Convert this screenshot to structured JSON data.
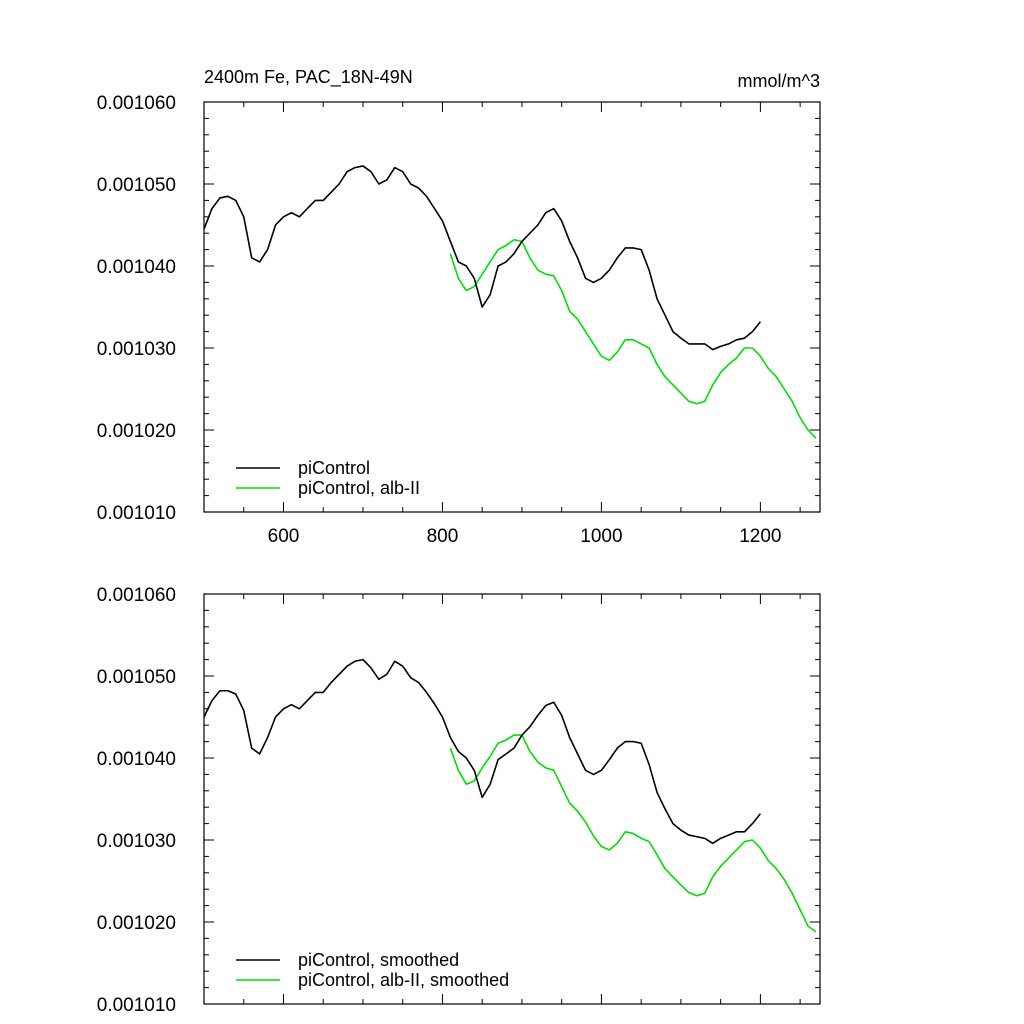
{
  "chart_data": [
    {
      "type": "line",
      "title": "2400m Fe, PAC_18N-49N",
      "units": "mmol/m^3",
      "xlim": [
        500,
        1275
      ],
      "ylim": [
        0.00101,
        0.00106
      ],
      "xticks": [
        600,
        800,
        1000,
        1200
      ],
      "xtick_labels": [
        "600",
        "800",
        "1000",
        "1200"
      ],
      "yticks": [
        0.00101,
        0.00102,
        0.00103,
        0.00104,
        0.00105,
        0.00106
      ],
      "ytick_labels": [
        "0.001010",
        "0.001020",
        "0.001030",
        "0.001040",
        "0.001050",
        "0.001060"
      ],
      "grid": false,
      "legend_position": "bottom-left",
      "series": [
        {
          "name": "piControl",
          "color": "#000000",
          "x": [
            500,
            510,
            520,
            530,
            540,
            550,
            560,
            570,
            580,
            590,
            600,
            610,
            620,
            630,
            640,
            650,
            660,
            670,
            680,
            690,
            700,
            710,
            720,
            730,
            740,
            750,
            760,
            770,
            780,
            790,
            800,
            810,
            820,
            830,
            840,
            850,
            860,
            870,
            880,
            890,
            900,
            910,
            920,
            930,
            940,
            950,
            960,
            970,
            980,
            990,
            1000,
            1010,
            1020,
            1030,
            1040,
            1050,
            1060,
            1070,
            1080,
            1090,
            1100,
            1110,
            1120,
            1130,
            1140,
            1150,
            1160,
            1170,
            1180,
            1190,
            1200
          ],
          "y": [
            0.0010445,
            0.001047,
            0.0010483,
            0.0010485,
            0.001048,
            0.001046,
            0.001041,
            0.0010405,
            0.001042,
            0.001045,
            0.001046,
            0.0010465,
            0.001046,
            0.001047,
            0.001048,
            0.001048,
            0.001049,
            0.00105,
            0.0010515,
            0.001052,
            0.0010522,
            0.0010515,
            0.00105,
            0.0010505,
            0.001052,
            0.0010515,
            0.00105,
            0.0010495,
            0.0010485,
            0.001047,
            0.0010455,
            0.001043,
            0.0010405,
            0.00104,
            0.0010385,
            0.001035,
            0.0010365,
            0.00104,
            0.0010405,
            0.0010415,
            0.001043,
            0.001044,
            0.001045,
            0.0010465,
            0.001047,
            0.0010455,
            0.001043,
            0.001041,
            0.0010385,
            0.001038,
            0.0010385,
            0.0010395,
            0.001041,
            0.0010422,
            0.0010422,
            0.001042,
            0.0010395,
            0.001036,
            0.001034,
            0.001032,
            0.0010312,
            0.0010305,
            0.0010305,
            0.0010305,
            0.0010298,
            0.0010302,
            0.0010305,
            0.001031,
            0.0010312,
            0.001032,
            0.0010332
          ]
        },
        {
          "name": "piControl, alb-II",
          "color": "#00e000",
          "x": [
            810,
            820,
            830,
            840,
            850,
            860,
            870,
            880,
            890,
            900,
            910,
            920,
            930,
            940,
            950,
            960,
            970,
            980,
            990,
            1000,
            1010,
            1020,
            1030,
            1040,
            1050,
            1060,
            1070,
            1080,
            1090,
            1100,
            1110,
            1120,
            1130,
            1140,
            1150,
            1160,
            1170,
            1180,
            1190,
            1200,
            1210,
            1220,
            1230,
            1240,
            1250,
            1260,
            1270
          ],
          "y": [
            0.0010415,
            0.0010385,
            0.001037,
            0.0010375,
            0.001039,
            0.0010405,
            0.001042,
            0.0010425,
            0.0010432,
            0.001043,
            0.001041,
            0.0010395,
            0.001039,
            0.0010388,
            0.001037,
            0.0010345,
            0.0010335,
            0.001032,
            0.0010305,
            0.001029,
            0.0010285,
            0.0010295,
            0.001031,
            0.001031,
            0.0010305,
            0.00103,
            0.001028,
            0.0010265,
            0.0010255,
            0.0010245,
            0.0010235,
            0.0010232,
            0.0010235,
            0.0010255,
            0.001027,
            0.001028,
            0.0010288,
            0.00103,
            0.00103,
            0.001029,
            0.0010275,
            0.0010265,
            0.001025,
            0.0010235,
            0.0010215,
            0.00102,
            0.001019
          ]
        }
      ]
    },
    {
      "type": "line",
      "xlim": [
        500,
        1275
      ],
      "ylim": [
        0.00101,
        0.00106
      ],
      "xticks": [
        600,
        800,
        1000,
        1200
      ],
      "xtick_labels": [],
      "yticks": [
        0.00101,
        0.00102,
        0.00103,
        0.00104,
        0.00105,
        0.00106
      ],
      "ytick_labels": [
        "0.001010",
        "0.001020",
        "0.001030",
        "0.001040",
        "0.001050",
        "0.001060"
      ],
      "grid": false,
      "legend_position": "bottom-left",
      "series": [
        {
          "name": "piControl, smoothed",
          "color": "#000000",
          "x": [
            500,
            510,
            520,
            530,
            540,
            550,
            560,
            570,
            580,
            590,
            600,
            610,
            620,
            630,
            640,
            650,
            660,
            670,
            680,
            690,
            700,
            710,
            720,
            730,
            740,
            750,
            760,
            770,
            780,
            790,
            800,
            810,
            820,
            830,
            840,
            850,
            860,
            870,
            880,
            890,
            900,
            910,
            920,
            930,
            940,
            950,
            960,
            970,
            980,
            990,
            1000,
            1010,
            1020,
            1030,
            1040,
            1050,
            1060,
            1070,
            1080,
            1090,
            1100,
            1110,
            1120,
            1130,
            1140,
            1150,
            1160,
            1170,
            1180,
            1190,
            1200
          ],
          "y": [
            0.001045,
            0.001047,
            0.0010482,
            0.0010482,
            0.0010478,
            0.0010458,
            0.0010412,
            0.0010405,
            0.0010425,
            0.001045,
            0.001046,
            0.0010465,
            0.001046,
            0.001047,
            0.001048,
            0.001048,
            0.0010492,
            0.0010502,
            0.0010512,
            0.0010518,
            0.001052,
            0.001051,
            0.0010496,
            0.0010502,
            0.0010518,
            0.0010512,
            0.0010498,
            0.0010492,
            0.001048,
            0.0010466,
            0.001045,
            0.0010425,
            0.0010408,
            0.00104,
            0.0010385,
            0.0010352,
            0.0010368,
            0.0010398,
            0.0010405,
            0.0010412,
            0.0010428,
            0.0010438,
            0.0010452,
            0.0010464,
            0.0010468,
            0.0010452,
            0.0010425,
            0.0010405,
            0.0010385,
            0.001038,
            0.0010385,
            0.0010398,
            0.0010412,
            0.001042,
            0.001042,
            0.0010418,
            0.0010392,
            0.0010358,
            0.0010338,
            0.001032,
            0.0010312,
            0.0010306,
            0.0010304,
            0.0010302,
            0.0010296,
            0.0010302,
            0.0010306,
            0.001031,
            0.001031,
            0.001032,
            0.0010332
          ]
        },
        {
          "name": "piControl, alb-II, smoothed",
          "color": "#00e000",
          "x": [
            810,
            820,
            830,
            840,
            850,
            860,
            870,
            880,
            890,
            900,
            910,
            920,
            930,
            940,
            950,
            960,
            970,
            980,
            990,
            1000,
            1010,
            1020,
            1030,
            1040,
            1050,
            1060,
            1070,
            1080,
            1090,
            1100,
            1110,
            1120,
            1130,
            1140,
            1150,
            1160,
            1170,
            1180,
            1190,
            1200,
            1210,
            1220,
            1230,
            1240,
            1250,
            1260,
            1270
          ],
          "y": [
            0.0010412,
            0.0010385,
            0.0010368,
            0.0010372,
            0.0010388,
            0.0010402,
            0.0010418,
            0.0010422,
            0.0010428,
            0.0010428,
            0.0010408,
            0.0010395,
            0.0010388,
            0.0010385,
            0.0010365,
            0.0010345,
            0.0010335,
            0.0010322,
            0.0010305,
            0.0010292,
            0.0010288,
            0.0010296,
            0.001031,
            0.0010308,
            0.0010302,
            0.0010298,
            0.0010282,
            0.0010265,
            0.0010255,
            0.0010245,
            0.0010236,
            0.0010232,
            0.0010235,
            0.0010255,
            0.0010268,
            0.0010278,
            0.0010288,
            0.0010298,
            0.00103,
            0.001029,
            0.0010275,
            0.0010265,
            0.0010252,
            0.0010235,
            0.0010215,
            0.0010195,
            0.0010188
          ]
        }
      ]
    }
  ]
}
